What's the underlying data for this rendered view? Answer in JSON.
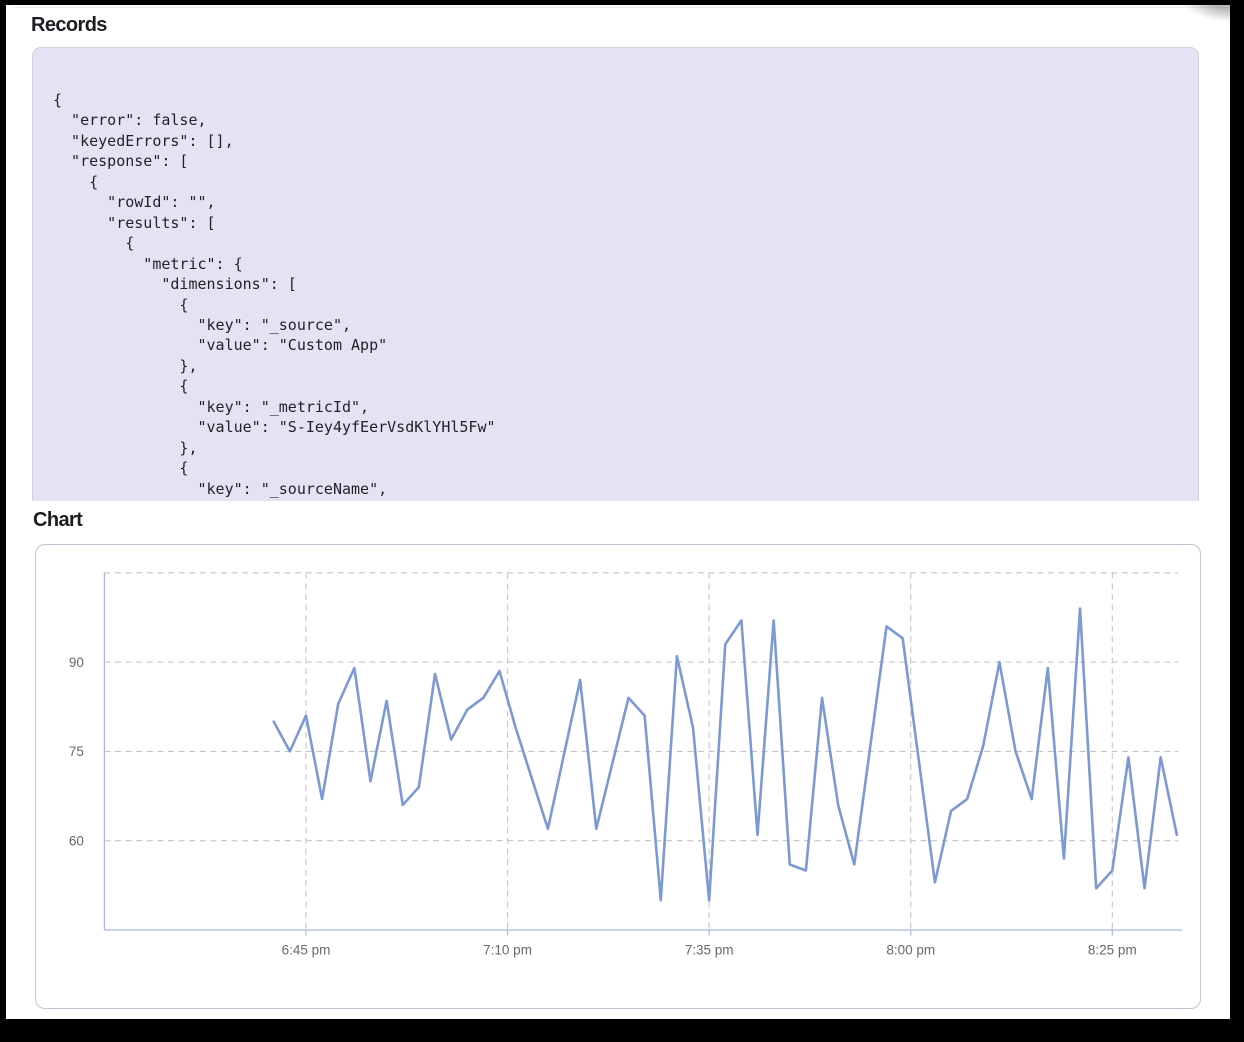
{
  "records_section": {
    "title": "Records",
    "code_lines": [
      "{",
      "  \"error\": false,",
      "  \"keyedErrors\": [],",
      "  \"response\": [",
      "    {",
      "      \"rowId\": \"\",",
      "      \"results\": [",
      "        {",
      "          \"metric\": {",
      "            \"dimensions\": [",
      "              {",
      "                \"key\": \"_source\",",
      "                \"value\": \"Custom App\"",
      "              },",
      "              {",
      "                \"key\": \"_metricId\",",
      "                \"value\": \"S-Iey4yfEerVsdKlYHl5Fw\"",
      "              },",
      "              {",
      "                \"key\": \"_sourceName\","
    ]
  },
  "chart_section": {
    "title": "Chart"
  },
  "chart_data": {
    "type": "line",
    "title": "",
    "xlabel": "",
    "ylabel": "",
    "x": [
      "6:41 pm",
      "6:43 pm",
      "6:45 pm",
      "6:47 pm",
      "6:49 pm",
      "6:51 pm",
      "6:53 pm",
      "6:55 pm",
      "6:57 pm",
      "6:59 pm",
      "7:01 pm",
      "7:03 pm",
      "7:05 pm",
      "7:07 pm",
      "7:09 pm",
      "7:11 pm",
      "7:13 pm",
      "7:15 pm",
      "7:17 pm",
      "7:19 pm",
      "7:21 pm",
      "7:23 pm",
      "7:25 pm",
      "7:27 pm",
      "7:29 pm",
      "7:31 pm",
      "7:33 pm",
      "7:35 pm",
      "7:37 pm",
      "7:39 pm",
      "7:41 pm",
      "7:43 pm",
      "7:45 pm",
      "7:47 pm",
      "7:49 pm",
      "7:51 pm",
      "7:53 pm",
      "7:55 pm",
      "7:57 pm",
      "7:59 pm",
      "8:01 pm",
      "8:03 pm",
      "8:05 pm",
      "8:07 pm",
      "8:09 pm",
      "8:11 pm",
      "8:13 pm",
      "8:15 pm",
      "8:17 pm",
      "8:19 pm",
      "8:21 pm",
      "8:23 pm",
      "8:25 pm",
      "8:27 pm",
      "8:29 pm",
      "8:31 pm",
      "8:33 pm"
    ],
    "values": [
      80,
      75,
      81,
      67,
      83,
      89,
      70,
      83.5,
      66,
      69,
      88,
      77,
      82,
      84,
      88.5,
      79,
      70.5,
      62,
      74.5,
      87,
      62,
      73,
      84,
      81,
      50,
      91,
      79,
      50,
      93,
      97,
      61,
      97,
      56,
      55,
      84,
      66,
      56,
      76,
      96,
      94,
      73.5,
      53,
      65,
      67,
      76,
      90,
      75,
      67,
      89,
      57,
      99,
      52,
      55,
      74,
      52,
      74,
      61
    ],
    "x_tick_labels": [
      "6:45 pm",
      "7:10 pm",
      "7:35 pm",
      "8:00 pm",
      "8:25 pm"
    ],
    "y_tick_labels": [
      "60",
      "75",
      "90"
    ],
    "ylim": [
      45,
      105
    ],
    "y_gridlines": [
      60,
      75,
      90,
      105
    ],
    "grid": "dashed",
    "legend": "none",
    "line_color": "#7d99d4",
    "axis_color": "#aab8dd",
    "grid_color": "#c5c5c8",
    "label_color": "#65686e"
  }
}
